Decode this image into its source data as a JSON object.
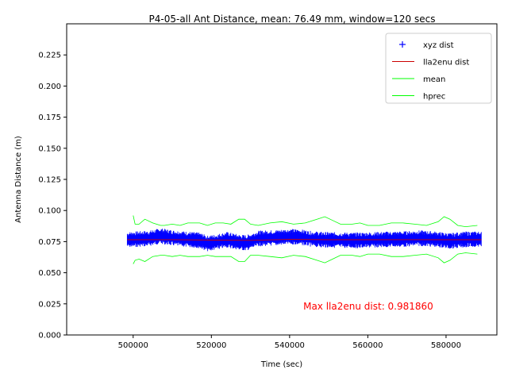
{
  "chart_data": {
    "type": "line",
    "title": "P4-05-all Ant Distance, mean: 76.49 mm, window=120 secs",
    "xlabel": "Time (sec)",
    "ylabel": "Antenna Distance (m)",
    "xlim": [
      483000,
      593000
    ],
    "ylim": [
      0.0,
      0.25
    ],
    "x_ticks": [
      500000,
      520000,
      540000,
      560000,
      580000
    ],
    "x_tick_labels": [
      "500000",
      "520000",
      "540000",
      "560000",
      "580000"
    ],
    "y_ticks": [
      0.0,
      0.025,
      0.05,
      0.075,
      0.1,
      0.125,
      0.15,
      0.175,
      0.2,
      0.225
    ],
    "y_tick_labels": [
      "0.000",
      "0.025",
      "0.050",
      "0.075",
      "0.100",
      "0.125",
      "0.150",
      "0.175",
      "0.200",
      "0.225"
    ],
    "grid": false,
    "legend_position": "top-right",
    "annotation": {
      "text": "Max lla2enu dist: 0.981860",
      "x": 543500,
      "y": 0.0205,
      "color": "#ff0000"
    },
    "series": [
      {
        "name": "xyz dist",
        "marker": "+",
        "color": "#0000ff",
        "x_range": [
          498500,
          589000
        ],
        "description": "dense band of points around 0.0765",
        "x": [
          498500,
          502000,
          504000,
          507000,
          510000,
          514000,
          517000,
          519000,
          521000,
          524000,
          527000,
          529000,
          532000,
          536000,
          540000,
          543000,
          546000,
          549000,
          553000,
          557000,
          561000,
          565000,
          569000,
          573000,
          577000,
          581000,
          585000,
          589000
        ],
        "y": [
          0.0765,
          0.0772,
          0.0775,
          0.0795,
          0.078,
          0.0768,
          0.076,
          0.0735,
          0.0745,
          0.0765,
          0.0745,
          0.074,
          0.0775,
          0.078,
          0.079,
          0.0785,
          0.077,
          0.0765,
          0.0762,
          0.076,
          0.0764,
          0.0768,
          0.077,
          0.0778,
          0.077,
          0.0755,
          0.0768,
          0.077
        ]
      },
      {
        "name": "lla2enu dist",
        "color": "#cc0000",
        "x": [
          498500,
          510000,
          520000,
          530000,
          540000,
          550000,
          560000,
          570000,
          580000,
          589000
        ],
        "y": [
          0.0765,
          0.0766,
          0.0762,
          0.076,
          0.0768,
          0.0765,
          0.0765,
          0.0766,
          0.0765,
          0.0765
        ]
      },
      {
        "name": "mean",
        "color": "#00ff00",
        "x": [
          500000,
          500500,
          501500,
          503000,
          505000,
          507000,
          508000,
          510000,
          512000,
          514000,
          517000,
          519000,
          521000,
          523000,
          525000,
          527000,
          528500,
          530000,
          532000,
          535000,
          538000,
          541000,
          544000,
          547000,
          549000,
          551000,
          553000,
          556000,
          558000,
          560000,
          563000,
          566000,
          569000,
          572000,
          575000,
          578000,
          579500,
          581000,
          583000,
          585000,
          588000
        ],
        "y": [
          0.096,
          0.089,
          0.089,
          0.093,
          0.09,
          0.088,
          0.088,
          0.089,
          0.088,
          0.09,
          0.09,
          0.088,
          0.09,
          0.09,
          0.089,
          0.093,
          0.093,
          0.089,
          0.088,
          0.09,
          0.091,
          0.089,
          0.09,
          0.093,
          0.095,
          0.092,
          0.089,
          0.089,
          0.09,
          0.088,
          0.088,
          0.09,
          0.09,
          0.089,
          0.088,
          0.091,
          0.095,
          0.093,
          0.088,
          0.087,
          0.088
        ]
      },
      {
        "name": "hprec",
        "color": "#00ff00",
        "x": [
          500000,
          500500,
          501500,
          503000,
          505000,
          507000,
          508000,
          510000,
          512000,
          514000,
          517000,
          519000,
          521000,
          523000,
          525000,
          527000,
          528500,
          530000,
          532000,
          535000,
          538000,
          541000,
          544000,
          547000,
          549000,
          551000,
          553000,
          556000,
          558000,
          560000,
          563000,
          566000,
          569000,
          572000,
          575000,
          578000,
          579500,
          581000,
          583000,
          585000,
          588000
        ],
        "y": [
          0.057,
          0.06,
          0.061,
          0.059,
          0.063,
          0.064,
          0.064,
          0.063,
          0.064,
          0.063,
          0.063,
          0.064,
          0.063,
          0.063,
          0.063,
          0.059,
          0.059,
          0.064,
          0.064,
          0.063,
          0.062,
          0.064,
          0.063,
          0.06,
          0.058,
          0.061,
          0.064,
          0.064,
          0.063,
          0.065,
          0.065,
          0.063,
          0.063,
          0.064,
          0.065,
          0.062,
          0.058,
          0.06,
          0.065,
          0.066,
          0.065
        ]
      }
    ]
  }
}
